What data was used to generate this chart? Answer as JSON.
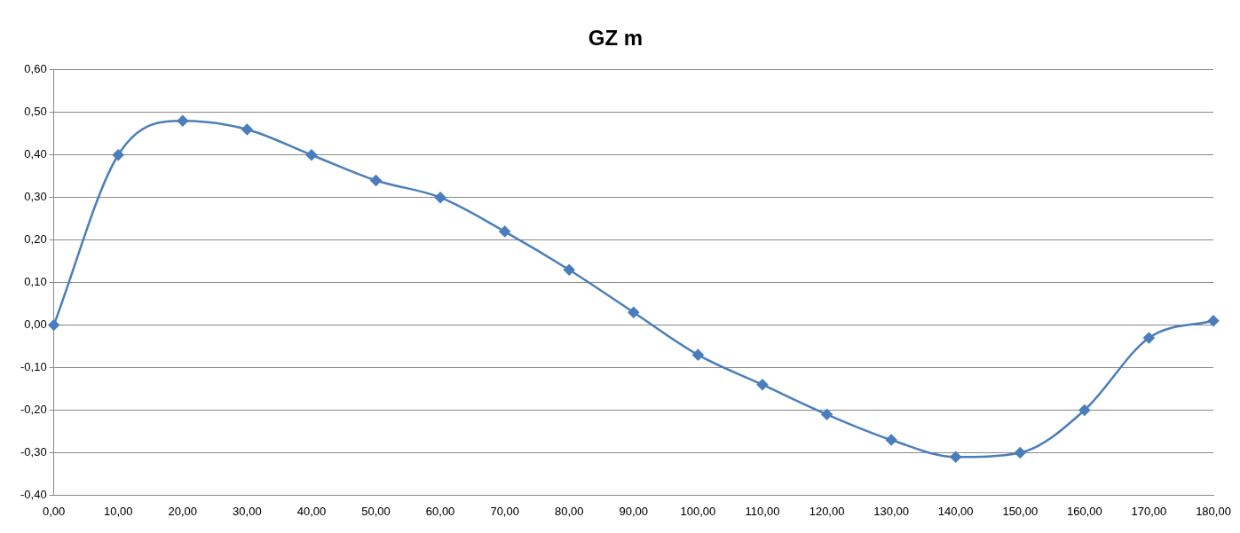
{
  "chart_data": {
    "type": "line",
    "title": "GZ m",
    "categories": [
      "0,00",
      "10,00",
      "20,00",
      "30,00",
      "40,00",
      "50,00",
      "60,00",
      "70,00",
      "80,00",
      "90,00",
      "100,00",
      "110,00",
      "120,00",
      "130,00",
      "140,00",
      "150,00",
      "160,00",
      "170,00",
      "180,00"
    ],
    "series": [
      {
        "color": "#4a7ebb",
        "values": [
          0.0,
          0.4,
          0.48,
          0.46,
          0.4,
          0.34,
          0.3,
          0.22,
          0.13,
          0.03,
          -0.07,
          -0.14,
          -0.21,
          -0.27,
          -0.31,
          -0.3,
          -0.2,
          -0.03,
          0.01
        ]
      }
    ],
    "ylim": [
      -0.4,
      0.6
    ],
    "yticks": [
      {
        "value": -0.4,
        "label": "-0,40"
      },
      {
        "value": -0.3,
        "label": "-0,30"
      },
      {
        "value": -0.2,
        "label": "-0,20"
      },
      {
        "value": -0.1,
        "label": "-0,10"
      },
      {
        "value": 0,
        "label": "0,00"
      },
      {
        "value": 0.1,
        "label": "0,10"
      },
      {
        "value": 0.2,
        "label": "0,20"
      },
      {
        "value": 0.3,
        "label": "0,30"
      },
      {
        "value": 0.4,
        "label": "0,40"
      },
      {
        "value": 0.5,
        "label": "0,50"
      },
      {
        "value": 0.6,
        "label": "0,60"
      }
    ],
    "grid": "y",
    "legend": false,
    "marker": "diamond",
    "line_style": "solid"
  }
}
